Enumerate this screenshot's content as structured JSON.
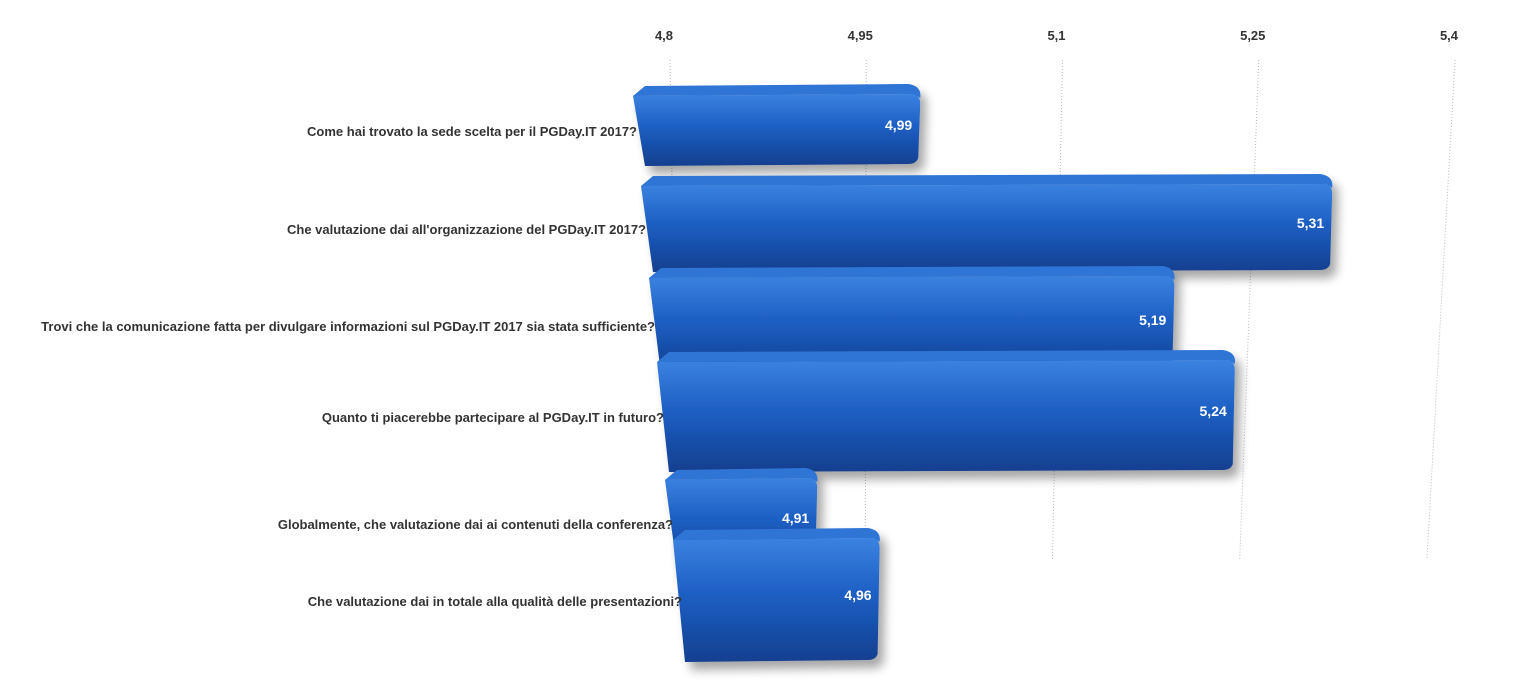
{
  "chart_data": {
    "type": "bar",
    "orientation": "horizontal",
    "categories": [
      "Come hai trovato la sede scelta per il PGDay.IT 2017?",
      "Che valutazione dai all'organizzazione del PGDay.IT 2017?",
      "Trovi che la comunicazione fatta per divulgare informazioni sul PGDay.IT 2017 sia stata sufficiente?",
      "Quanto ti piacerebbe partecipare al PGDay.IT in futuro?",
      "Globalmente, che valutazione dai ai contenuti della conferenza?",
      "Che valutazione dai in totale alla qualità delle presentazioni?"
    ],
    "values": [
      4.99,
      5.31,
      5.19,
      5.24,
      4.91,
      4.96
    ],
    "data_labels": [
      "4,99",
      "5,31",
      "5,19",
      "5,24",
      "4,91",
      "4,96"
    ],
    "xticks": [
      4.8,
      4.95,
      5.1,
      5.25,
      5.4
    ],
    "xtick_labels": [
      "4,8",
      "4,95",
      "5,1",
      "5,25",
      "5,4"
    ],
    "xlim": [
      4.8,
      5.4
    ],
    "axis_position": "top",
    "grid": true,
    "legend": "none",
    "bar_color": "#1d5fc4",
    "bar_color_dark": "#123f8f",
    "bar_color_light": "#3b82e0"
  }
}
